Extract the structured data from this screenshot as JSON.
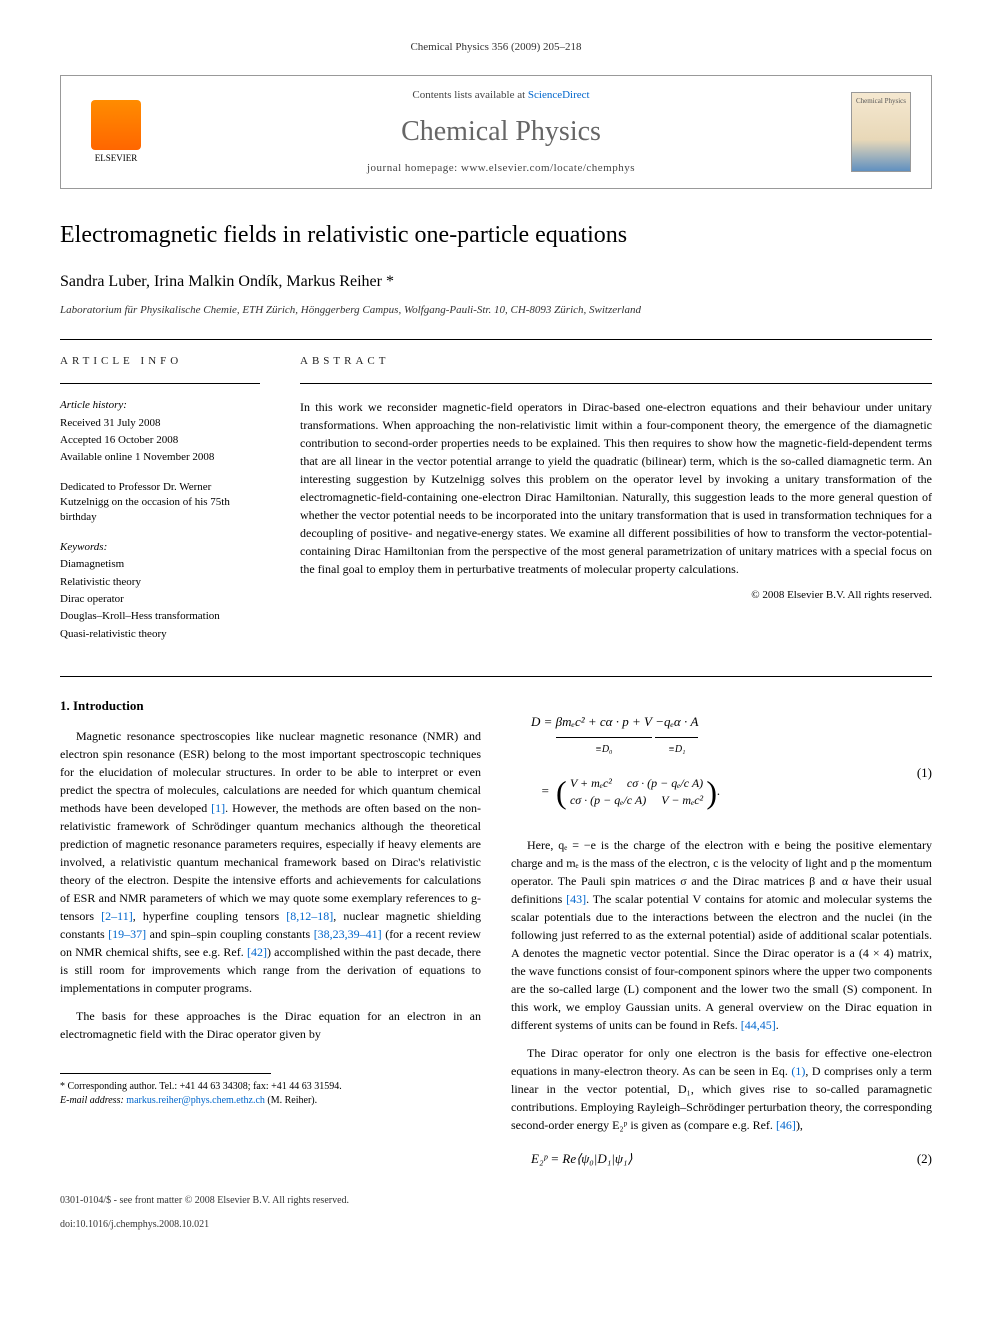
{
  "journal_ref": "Chemical Physics 356 (2009) 205–218",
  "header": {
    "contents_prefix": "Contents lists available at ",
    "contents_link": "ScienceDirect",
    "journal_name": "Chemical Physics",
    "homepage_prefix": "journal homepage: ",
    "homepage_url": "www.elsevier.com/locate/chemphys",
    "publisher": "ELSEVIER",
    "cover_label": "Chemical Physics"
  },
  "article": {
    "title": "Electromagnetic fields in relativistic one-particle equations",
    "authors": "Sandra Luber, Irina Malkin Ondík, Markus Reiher *",
    "affiliation": "Laboratorium für Physikalische Chemie, ETH Zürich, Hönggerberg Campus, Wolfgang-Pauli-Str. 10, CH-8093 Zürich, Switzerland"
  },
  "info": {
    "heading": "ARTICLE INFO",
    "history_label": "Article history:",
    "received": "Received 31 July 2008",
    "accepted": "Accepted 16 October 2008",
    "online": "Available online 1 November 2008",
    "dedication": "Dedicated to Professor Dr. Werner Kutzelnigg on the occasion of his 75th birthday",
    "keywords_label": "Keywords:",
    "keywords": [
      "Diamagnetism",
      "Relativistic theory",
      "Dirac operator",
      "Douglas–Kroll–Hess transformation",
      "Quasi-relativistic theory"
    ]
  },
  "abstract": {
    "heading": "ABSTRACT",
    "text": "In this work we reconsider magnetic-field operators in Dirac-based one-electron equations and their behaviour under unitary transformations. When approaching the non-relativistic limit within a four-component theory, the emergence of the diamagnetic contribution to second-order properties needs to be explained. This then requires to show how the magnetic-field-dependent terms that are all linear in the vector potential arrange to yield the quadratic (bilinear) term, which is the so-called diamagnetic term. An interesting suggestion by Kutzelnigg solves this problem on the operator level by invoking a unitary transformation of the electromagnetic-field-containing one-electron Dirac Hamiltonian. Naturally, this suggestion leads to the more general question of whether the vector potential needs to be incorporated into the unitary transformation that is used in transformation techniques for a decoupling of positive- and negative-energy states. We examine all different possibilities of how to transform the vector-potential-containing Dirac Hamiltonian from the perspective of the most general parametrization of unitary matrices with a special focus on the final goal to employ them in perturbative treatments of molecular property calculations.",
    "copyright": "© 2008 Elsevier B.V. All rights reserved."
  },
  "section1": {
    "heading": "1. Introduction",
    "para1_a": "Magnetic resonance spectroscopies like nuclear magnetic resonance (NMR) and electron spin resonance (ESR) belong to the most important spectroscopic techniques for the elucidation of molecular structures. In order to be able to interpret or even predict the spectra of molecules, calculations are needed for which quantum chemical methods have been developed ",
    "ref1": "[1]",
    "para1_b": ". However, the methods are often based on the non-relativistic framework of Schrödinger quantum mechanics although the theoretical prediction of magnetic resonance parameters requires, especially if heavy elements are involved, a relativistic quantum mechanical framework based on Dirac's relativistic theory of the electron. Despite the intensive efforts and achievements for calculations of ESR and NMR parameters of which we may quote some exemplary references to g-tensors ",
    "ref2": "[2–11]",
    "para1_c": ", hyperfine coupling tensors ",
    "ref3": "[8,12–18]",
    "para1_d": ", nuclear magnetic shielding constants ",
    "ref4": "[19–37]",
    "para1_e": " and spin–spin coupling constants ",
    "ref5": "[38,23,39–41]",
    "para1_f": " (for a recent review on NMR chemical shifts, see e.g. Ref. ",
    "ref6": "[42]",
    "para1_g": ") accomplished within the past decade, there is still room for improvements which range from the derivation of equations to implementations in computer programs.",
    "para2": "The basis for these approaches is the Dirac equation for an electron in an electromagnetic field with the Dirac operator given by"
  },
  "equations": {
    "eq1_line1_a": "D = ",
    "eq1_ub1_content": "βmₑc² + cα · p + V",
    "eq1_ub1_label": "≡D₀",
    "eq1_ub2_content": "−qₑα · A",
    "eq1_ub2_label": "≡D₁",
    "eq1_m11": "V + mₑc²",
    "eq1_m12": "cσ · (p − qₑ/c A)",
    "eq1_m21": "cσ · (p − qₑ/c A)",
    "eq1_m22": "V − mₑc²",
    "eq1_num": "(1)",
    "eq2": "E₂ᵖ = Re⟨ψ₀|D₁|ψ₁⟩",
    "eq2_num": "(2)"
  },
  "col2": {
    "para1_a": "Here, qₑ = −e is the charge of the electron with e being the positive elementary charge and mₑ is the mass of the electron, c is the velocity of light and p the momentum operator. The Pauli spin matrices σ and the Dirac matrices β and α have their usual definitions ",
    "ref43": "[43]",
    "para1_b": ". The scalar potential V contains for atomic and molecular systems the scalar potentials due to the interactions between the electron and the nuclei (in the following just referred to as the external potential) aside of additional scalar potentials. A denotes the magnetic vector potential. Since the Dirac operator is a (4 × 4) matrix, the wave functions consist of four-component spinors where the upper two components are the so-called large (L) component and the lower two the small (S) component. In this work, we employ Gaussian units. A general overview on the Dirac equation in different systems of units can be found in Refs. ",
    "ref4445": "[44,45]",
    "para1_c": ".",
    "para2_a": "The Dirac operator for only one electron is the basis for effective one-electron equations in many-electron theory. As can be seen in Eq. ",
    "refeq1": "(1)",
    "para2_b": ", D comprises only a term linear in the vector potential, D₁, which gives rise to so-called paramagnetic contributions. Employing Rayleigh–Schrödinger perturbation theory, the corresponding second-order energy E₂ᵖ is given as (compare e.g. Ref. ",
    "ref46": "[46]",
    "para2_c": "),"
  },
  "footnote": {
    "corr_label": "* Corresponding author. Tel.: +41 44 63 34308; fax: +41 44 63 31594.",
    "email_label": "E-mail address:",
    "email": "markus.reiher@phys.chem.ethz.ch",
    "email_who": " (M. Reiher)."
  },
  "footer": {
    "line1": "0301-0104/$ - see front matter © 2008 Elsevier B.V. All rights reserved.",
    "line2": "doi:10.1016/j.chemphys.2008.10.021"
  }
}
